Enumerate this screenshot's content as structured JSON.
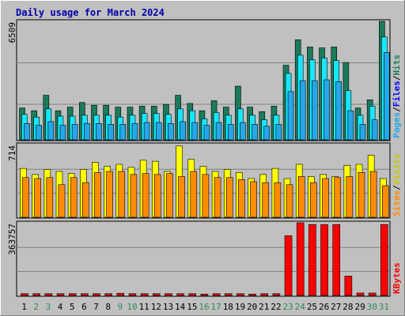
{
  "chart_data": [
    {
      "type": "bar",
      "title": "Daily usage for March 2024",
      "categories": [
        "1",
        "2",
        "3",
        "4",
        "5",
        "6",
        "7",
        "8",
        "9",
        "10",
        "11",
        "12",
        "13",
        "14",
        "15",
        "16",
        "17",
        "18",
        "19",
        "20",
        "21",
        "22",
        "23",
        "24",
        "25",
        "26",
        "27",
        "28",
        "29",
        "30",
        "31"
      ],
      "weekend_categories": [
        "2",
        "3",
        "9",
        "10",
        "16",
        "17",
        "23",
        "24",
        "30",
        "31"
      ],
      "ymax_label": "6509",
      "ylim": [
        0,
        6509
      ],
      "legend": [
        "Pages",
        "Files",
        "Hits"
      ],
      "series": [
        {
          "name": "Hits",
          "color": "#1b7a5a",
          "values": [
            1750,
            1600,
            2450,
            1600,
            1800,
            2050,
            1900,
            1900,
            1800,
            1800,
            1850,
            1850,
            1950,
            2450,
            2000,
            1600,
            2150,
            1800,
            2950,
            1800,
            1550,
            1850,
            4100,
            5500,
            5100,
            5050,
            5100,
            4250,
            1750,
            2200,
            6509
          ]
        },
        {
          "name": "Files",
          "color": "#18e6ff",
          "values": [
            1400,
            1250,
            1700,
            1300,
            1300,
            1350,
            1350,
            1350,
            1250,
            1350,
            1450,
            1450,
            1400,
            1700,
            1600,
            1150,
            1500,
            1350,
            1700,
            1350,
            1100,
            1350,
            3650,
            4650,
            4400,
            4500,
            4350,
            2700,
            1350,
            1850,
            5650
          ]
        },
        {
          "name": "Pages",
          "color": "#23a8e8",
          "values": [
            900,
            800,
            1000,
            800,
            850,
            900,
            900,
            850,
            850,
            900,
            950,
            950,
            900,
            1000,
            950,
            800,
            950,
            850,
            950,
            850,
            750,
            850,
            2650,
            3250,
            3250,
            3300,
            3200,
            1600,
            850,
            1100,
            4800
          ]
        }
      ]
    },
    {
      "type": "bar",
      "ymax_label": "714",
      "ylim": [
        0,
        714
      ],
      "legend": [
        "Sites",
        "Visits"
      ],
      "series": [
        {
          "name": "Visits",
          "color": "#ffff00",
          "values": [
            480,
            420,
            470,
            450,
            430,
            470,
            540,
            500,
            520,
            490,
            560,
            550,
            450,
            700,
            570,
            500,
            450,
            470,
            440,
            380,
            420,
            480,
            380,
            520,
            400,
            420,
            400,
            510,
            520,
            610,
            380
          ]
        },
        {
          "name": "Sites",
          "color": "#ff8c00",
          "values": [
            390,
            380,
            390,
            320,
            390,
            340,
            440,
            450,
            450,
            420,
            430,
            420,
            430,
            400,
            450,
            420,
            390,
            390,
            370,
            350,
            340,
            340,
            320,
            400,
            340,
            380,
            390,
            400,
            440,
            450,
            310
          ]
        }
      ]
    },
    {
      "type": "bar",
      "ymax_label": "363757",
      "ylim": [
        0,
        363757
      ],
      "legend": [
        "KBytes"
      ],
      "series": [
        {
          "name": "KBytes",
          "color": "#ff0000",
          "values": [
            9000,
            9000,
            9000,
            9000,
            9000,
            9000,
            9000,
            9000,
            11000,
            9000,
            9000,
            9000,
            9000,
            9000,
            9000,
            7000,
            9000,
            9000,
            9000,
            7000,
            9000,
            9000,
            299000,
            363757,
            355000,
            355000,
            355000,
            97000,
            12000,
            12000,
            355000
          ]
        }
      ]
    }
  ]
}
